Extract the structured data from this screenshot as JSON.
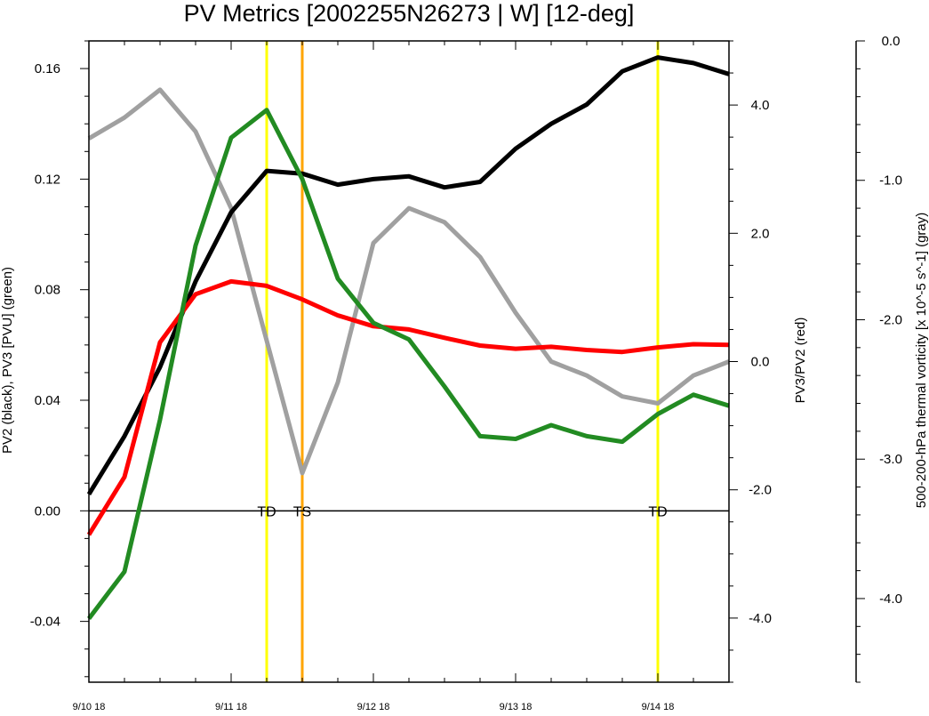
{
  "chart_data": {
    "type": "line",
    "title": "PV Metrics [2002255N26273 | W] [12-deg]",
    "x_tick_labels": [
      "9/10 18",
      "9/11 18",
      "9/12 18",
      "9/13 18",
      "9/14 18"
    ],
    "x_unit": "6-hourly steps from 9/10 18",
    "x": [
      0,
      1,
      2,
      3,
      4,
      5,
      6,
      7,
      8,
      9,
      10,
      11,
      12,
      13,
      14,
      15,
      16,
      17,
      18
    ],
    "xlim": [
      0,
      18
    ],
    "axes": {
      "left": {
        "label": "PV2 (black), PV3 [PVU] (green)",
        "ylim": [
          -0.062,
          0.17
        ],
        "ticks": [
          -0.04,
          0.0,
          0.04,
          0.08,
          0.12,
          0.16
        ],
        "tick_labels": [
          "-0.04",
          "0.00",
          "0.04",
          "0.08",
          "0.12",
          "0.16"
        ]
      },
      "right": {
        "label": "PV3/PV2 (red)",
        "ylim": [
          -5.0,
          5.0
        ],
        "ticks": [
          -4.0,
          -2.0,
          0.0,
          2.0,
          4.0
        ],
        "tick_labels": [
          "-4.0",
          "-2.0",
          "0.0",
          "2.0",
          "4.0"
        ]
      },
      "far_right": {
        "label": "500-200-hPa thermal vorticity [x 10^-5 s^-1] (gray)",
        "ylim": [
          -4.6,
          0.0
        ],
        "ticks": [
          -4.0,
          -3.0,
          -2.0,
          -1.0,
          0.0
        ],
        "tick_labels": [
          "-4.0",
          "-3.0",
          "-2.0",
          "-1.0",
          "0.0"
        ],
        "inverted": true
      }
    },
    "series": [
      {
        "color": "#000000",
        "axis": "left",
        "values": [
          0.006,
          0.027,
          0.052,
          0.083,
          0.108,
          0.123,
          0.122,
          0.118,
          0.12,
          0.121,
          0.117,
          0.119,
          0.131,
          0.14,
          0.147,
          0.159,
          0.164,
          0.162,
          0.158
        ]
      },
      {
        "color": "#228b22",
        "axis": "left",
        "values": [
          -0.039,
          -0.022,
          0.033,
          0.096,
          0.135,
          0.145,
          0.12,
          0.084,
          0.068,
          0.062,
          0.045,
          0.027,
          0.026,
          0.031,
          0.027,
          0.025,
          0.035,
          0.042,
          0.038
        ]
      },
      {
        "color": "#ff0000",
        "axis": "right",
        "values": [
          -2.7,
          -1.8,
          0.3,
          1.05,
          1.25,
          1.18,
          0.97,
          0.72,
          0.55,
          0.5,
          0.37,
          0.25,
          0.2,
          0.23,
          0.18,
          0.15,
          0.22,
          0.27,
          0.26
        ]
      },
      {
        "color": "#a0a0a0",
        "axis": "far_right",
        "values": [
          -0.7,
          -0.55,
          -0.35,
          -0.65,
          -1.2,
          -2.15,
          -3.1,
          -2.45,
          -1.45,
          -1.2,
          -1.3,
          -1.55,
          -1.95,
          -2.3,
          -2.4,
          -2.55,
          -2.6,
          -2.4,
          -2.3
        ]
      }
    ],
    "hline_left_value": 0.0,
    "vlines": [
      {
        "x": 5.0,
        "color": "#ffff00",
        "label": "TD"
      },
      {
        "x": 6.0,
        "color": "#ffa500",
        "label": "TS"
      },
      {
        "x": 16.0,
        "color": "#ffff00",
        "label": "TD"
      }
    ],
    "grid": false,
    "legend": "none"
  }
}
